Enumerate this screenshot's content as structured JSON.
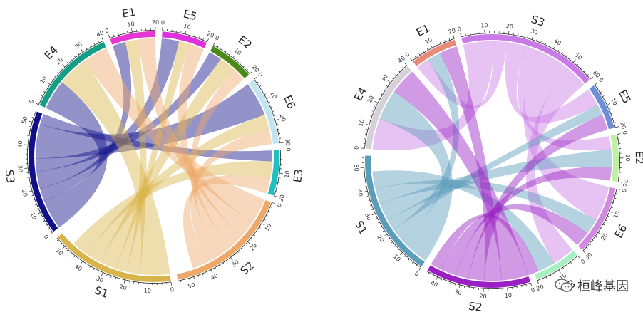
{
  "watermark": {
    "text": "桓峰基因",
    "icon": "wechat-icon"
  },
  "chart_data": [
    {
      "type": "chord",
      "sectors": [
        {
          "name": "E3",
          "max": 20,
          "color": "#20c0c0",
          "ticks": [
            0,
            10,
            20
          ]
        },
        {
          "name": "S2",
          "max": 55,
          "color": "#eda86a",
          "ticks": [
            0,
            10,
            20,
            30,
            40,
            50
          ]
        },
        {
          "name": "S1",
          "max": 55,
          "color": "#d9b44a",
          "ticks": [
            0,
            10,
            20,
            30,
            40,
            50
          ]
        },
        {
          "name": "S3",
          "max": 55,
          "color": "#10108a",
          "ticks": [
            0,
            10,
            20,
            30,
            40,
            50
          ]
        },
        {
          "name": "E4",
          "max": 40,
          "color": "#159e86",
          "ticks": [
            0,
            10,
            20,
            30,
            40
          ]
        },
        {
          "name": "E1",
          "max": 20,
          "color": "#e535d2",
          "ticks": [
            0,
            10,
            20
          ]
        },
        {
          "name": "E5",
          "max": 20,
          "color": "#df30e0",
          "ticks": [
            0,
            10,
            20
          ]
        },
        {
          "name": "E2",
          "max": 20,
          "color": "#4c8a18",
          "ticks": [
            0,
            10,
            20
          ]
        },
        {
          "name": "E6",
          "max": 30,
          "color": "#c0e4f2",
          "ticks": [
            0,
            10,
            20,
            30
          ]
        }
      ],
      "links": [
        {
          "from": "S3",
          "to": "E4",
          "value": 14
        },
        {
          "from": "S3",
          "to": "E1",
          "value": 6
        },
        {
          "from": "S3",
          "to": "E5",
          "value": 8
        },
        {
          "from": "S3",
          "to": "E2",
          "value": 6
        },
        {
          "from": "S3",
          "to": "E6",
          "value": 16
        },
        {
          "from": "S3",
          "to": "E3",
          "value": 5
        },
        {
          "from": "S1",
          "to": "E4",
          "value": 14
        },
        {
          "from": "S1",
          "to": "E1",
          "value": 6
        },
        {
          "from": "S1",
          "to": "E5",
          "value": 5
        },
        {
          "from": "S1",
          "to": "E2",
          "value": 8
        },
        {
          "from": "S1",
          "to": "E6",
          "value": 7
        },
        {
          "from": "S1",
          "to": "E3",
          "value": 8
        },
        {
          "from": "S2",
          "to": "E4",
          "value": 12
        },
        {
          "from": "S2",
          "to": "E1",
          "value": 8
        },
        {
          "from": "S2",
          "to": "E5",
          "value": 7
        },
        {
          "from": "S2",
          "to": "E2",
          "value": 6
        },
        {
          "from": "S2",
          "to": "E6",
          "value": 7
        },
        {
          "from": "S2",
          "to": "E3",
          "value": 7
        }
      ]
    },
    {
      "type": "chord",
      "sectors": [
        {
          "name": "E2",
          "max": 20,
          "color": "#bdf0a2",
          "ticks": [
            0,
            10,
            20
          ]
        },
        {
          "name": "E6",
          "max": 30,
          "color": "#d28ae0",
          "ticks": [
            0,
            10,
            20,
            30
          ]
        },
        {
          "name": "E3",
          "max": 20,
          "color": "#a9f0c0",
          "ticks": [
            0,
            10,
            20
          ]
        },
        {
          "name": "S2",
          "max": 45,
          "color": "#9a1fc4",
          "ticks": [
            0,
            10,
            20,
            30,
            40
          ]
        },
        {
          "name": "S1",
          "max": 55,
          "color": "#5a9cba",
          "ticks": [
            0,
            10,
            20,
            30,
            40,
            50
          ]
        },
        {
          "name": "E4",
          "max": 40,
          "color": "#d6d0d8",
          "ticks": [
            0,
            10,
            20,
            30,
            40
          ]
        },
        {
          "name": "E1",
          "max": 20,
          "color": "#e88a78",
          "ticks": [
            0,
            10,
            20
          ]
        },
        {
          "name": "S3",
          "max": 60,
          "color": "#c97ae6",
          "ticks": [
            0,
            10,
            20,
            30,
            40,
            50,
            60
          ]
        },
        {
          "name": "E5",
          "max": 20,
          "color": "#6d8fd8",
          "ticks": [
            0,
            10,
            20
          ]
        }
      ],
      "links": [
        {
          "from": "S3",
          "to": "E4",
          "value": 14
        },
        {
          "from": "S3",
          "to": "E1",
          "value": 6
        },
        {
          "from": "S3",
          "to": "E5",
          "value": 8
        },
        {
          "from": "S3",
          "to": "E2",
          "value": 6
        },
        {
          "from": "S3",
          "to": "E6",
          "value": 16
        },
        {
          "from": "S3",
          "to": "E3",
          "value": 10
        },
        {
          "from": "S1",
          "to": "E4",
          "value": 14
        },
        {
          "from": "S1",
          "to": "E1",
          "value": 6
        },
        {
          "from": "S1",
          "to": "E5",
          "value": 5
        },
        {
          "from": "S1",
          "to": "E2",
          "value": 8
        },
        {
          "from": "S1",
          "to": "E6",
          "value": 7
        },
        {
          "from": "S1",
          "to": "E3",
          "value": 8
        },
        {
          "from": "S2",
          "to": "E4",
          "value": 12
        },
        {
          "from": "S2",
          "to": "E1",
          "value": 8
        },
        {
          "from": "S2",
          "to": "E5",
          "value": 7
        },
        {
          "from": "S2",
          "to": "E2",
          "value": 6
        },
        {
          "from": "S2",
          "to": "E6",
          "value": 7
        },
        {
          "from": "S2",
          "to": "E3",
          "value": 5
        }
      ]
    }
  ]
}
